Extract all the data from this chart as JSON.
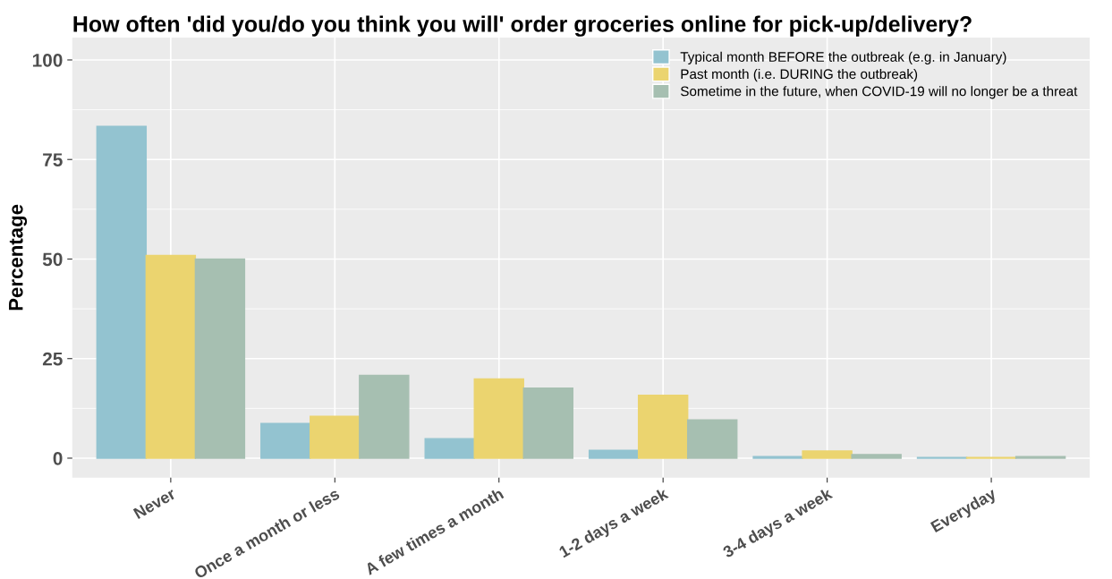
{
  "chart_data": {
    "type": "bar",
    "title": "How often 'did you/do you think you will' order groceries online for pick-up/delivery?",
    "ylabel": "Percentage",
    "categories": [
      "Never",
      "Once a month or less",
      "A few times a month",
      "1-2 days a week",
      "3-4 days a week",
      "Everyday"
    ],
    "series": [
      {
        "name": "Typical month BEFORE the outbreak (e.g. in January)",
        "color": "#93c3d0",
        "values": [
          83.3,
          8.7,
          4.9,
          2.0,
          0.4,
          0.2
        ]
      },
      {
        "name": "Past month (i.e. DURING the outbreak)",
        "color": "#ebd46f",
        "values": [
          50.9,
          10.5,
          19.9,
          15.8,
          1.8,
          0.2
        ]
      },
      {
        "name": "Sometime in the future, when COVID-19 will no longer be a threat",
        "color": "#a6bfb1",
        "values": [
          50.0,
          20.8,
          17.6,
          9.6,
          0.9,
          0.4
        ]
      }
    ],
    "ylim": [
      -4.9,
      105.6
    ],
    "yticks": [
      0,
      25,
      50,
      75,
      100
    ],
    "grid": true,
    "legend": "top right"
  }
}
